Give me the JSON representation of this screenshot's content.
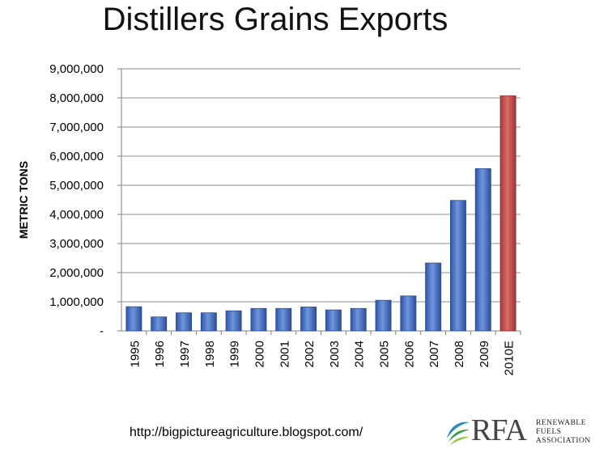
{
  "chart_data": {
    "type": "bar",
    "title": "Distillers Grains Exports",
    "ylabel": "METRIC TONS",
    "xlabel": "",
    "ylim": [
      0,
      9000000
    ],
    "yticks": [
      "-",
      "1,000,000",
      "2,000,000",
      "3,000,000",
      "4,000,000",
      "5,000,000",
      "6,000,000",
      "7,000,000",
      "8,000,000",
      "9,000,000"
    ],
    "categories": [
      "1995",
      "1996",
      "1997",
      "1998",
      "1999",
      "2000",
      "2001",
      "2002",
      "2003",
      "2004",
      "2005",
      "2006",
      "2007",
      "2008",
      "2009",
      "2010E"
    ],
    "values": [
      830000,
      480000,
      620000,
      620000,
      690000,
      770000,
      770000,
      820000,
      720000,
      770000,
      1050000,
      1200000,
      2330000,
      4480000,
      5570000,
      8070000
    ],
    "colors": {
      "actual": "#4a72c4",
      "estimate": "#c0504d"
    },
    "grid": true
  },
  "footer": {
    "url": "http://bigpictureagriculture.blogspot.com/",
    "logo_text": "RFA",
    "logo_line1": "RENEWABLE",
    "logo_line2": "FUELS",
    "logo_line3": "ASSOCIATION"
  }
}
